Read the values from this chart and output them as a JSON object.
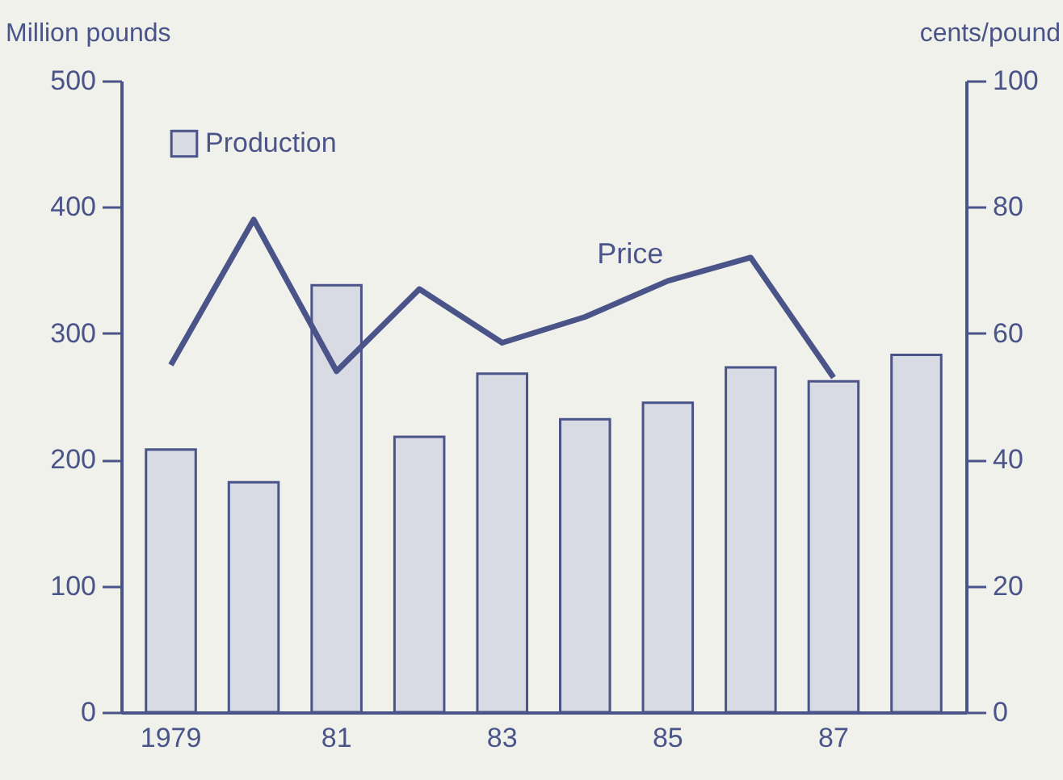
{
  "chart_data": {
    "type": "bar",
    "categories": [
      "1979",
      null,
      "81",
      null,
      "83",
      null,
      "85",
      null,
      "87",
      null
    ],
    "ylabel": "Million pounds",
    "y2label": "cents/pound",
    "ylim": [
      0,
      500
    ],
    "yticks": [
      0,
      100,
      200,
      300,
      400,
      500
    ],
    "y2lim": [
      0,
      100
    ],
    "y2ticks": [
      0,
      20,
      40,
      60,
      80,
      100
    ],
    "grid": false,
    "legend": "top left",
    "series": [
      {
        "name": "Production",
        "color": "#4a5488",
        "values": [
          208,
          182,
          338,
          218,
          268,
          232,
          245,
          273,
          262,
          283
        ]
      },
      {
        "name": "Price",
        "type": "line",
        "axis": "y2",
        "color": "#4a5488",
        "values": [
          55,
          78,
          54,
          67,
          58.5,
          62.6,
          68.3,
          72,
          53,
          null
        ]
      }
    ]
  }
}
